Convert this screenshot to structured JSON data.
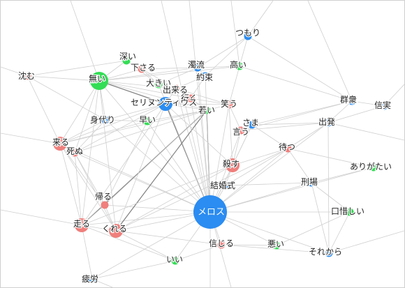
{
  "colors": {
    "pink": "#ef7f7c",
    "blue": "#2b8cf1",
    "green": "#33dd55",
    "edge": "#cfcfcf",
    "edge_strong": "#7f7f7f"
  },
  "nodes": [
    {
      "id": "tsumori",
      "label": "つもり",
      "color": "blue",
      "size": "s"
    },
    {
      "id": "fukai",
      "label": "深い",
      "color": "green",
      "size": "s"
    },
    {
      "id": "sagaru",
      "label": "下さる",
      "color": "pink",
      "size": "s"
    },
    {
      "id": "dakuryu",
      "label": "濁流",
      "color": "blue",
      "size": "s"
    },
    {
      "id": "takai",
      "label": "高い",
      "color": "green",
      "size": "s"
    },
    {
      "id": "shizumu",
      "label": "沈む",
      "color": "pink",
      "size": "s"
    },
    {
      "id": "nai",
      "label": "無い",
      "color": "green",
      "size": "l"
    },
    {
      "id": "ookii",
      "label": "大きい",
      "color": "green",
      "size": "s"
    },
    {
      "id": "yakusoku",
      "label": "約束",
      "color": "blue",
      "size": "s"
    },
    {
      "id": "dekiru",
      "label": "出来る",
      "color": "pink",
      "size": "s"
    },
    {
      "id": "iku",
      "label": "行く",
      "color": "pink",
      "size": "s"
    },
    {
      "id": "warau",
      "label": "笑う",
      "color": "pink",
      "size": "s"
    },
    {
      "id": "gunshu",
      "label": "群衆",
      "color": "blue",
      "size": "s"
    },
    {
      "id": "shinjitsu",
      "label": "信実",
      "color": "blue",
      "size": "s"
    },
    {
      "id": "selinuntius",
      "label": "セリヌンティウス",
      "color": "blue",
      "size": "m"
    },
    {
      "id": "wakai",
      "label": "若い",
      "color": "green",
      "size": "s"
    },
    {
      "id": "migawari",
      "label": "身代り",
      "color": "blue",
      "size": "s"
    },
    {
      "id": "hayai",
      "label": "早い",
      "color": "green",
      "size": "s"
    },
    {
      "id": "sama",
      "label": "さま",
      "color": "blue",
      "size": "s"
    },
    {
      "id": "iu",
      "label": "言う",
      "color": "pink",
      "size": "s"
    },
    {
      "id": "shuppatsu",
      "label": "出発",
      "color": "blue",
      "size": "s"
    },
    {
      "id": "kuru",
      "label": "来る",
      "color": "pink",
      "size": "m"
    },
    {
      "id": "shinu",
      "label": "死ぬ",
      "color": "pink",
      "size": "s"
    },
    {
      "id": "matsu",
      "label": "待つ",
      "color": "pink",
      "size": "s"
    },
    {
      "id": "korosu",
      "label": "殺す",
      "color": "pink",
      "size": "m"
    },
    {
      "id": "arigatai",
      "label": "ありがたい",
      "color": "green",
      "size": "s"
    },
    {
      "id": "keijo",
      "label": "刑場",
      "color": "blue",
      "size": "s"
    },
    {
      "id": "kekkonshiki",
      "label": "結婚式",
      "color": "blue",
      "size": "s"
    },
    {
      "id": "kaeru",
      "label": "帰る",
      "color": "pink",
      "size": "s"
    },
    {
      "id": "hashiru",
      "label": "走る",
      "color": "pink",
      "size": "m"
    },
    {
      "id": "kureru",
      "label": "くれる",
      "color": "pink",
      "size": "m"
    },
    {
      "id": "meros",
      "label": "メロス",
      "color": "blue",
      "size": "xl"
    },
    {
      "id": "kuchioshii",
      "label": "口惜しい",
      "color": "green",
      "size": "s"
    },
    {
      "id": "shinjiru",
      "label": "信じる",
      "color": "pink",
      "size": "s"
    },
    {
      "id": "warui",
      "label": "悪い",
      "color": "green",
      "size": "s"
    },
    {
      "id": "sorekara",
      "label": "それから",
      "color": "blue",
      "size": "s"
    },
    {
      "id": "ii",
      "label": "いい",
      "color": "green",
      "size": "s"
    },
    {
      "id": "hiro",
      "label": "疲労",
      "color": "blue",
      "size": "s"
    }
  ],
  "edges": [
    [
      "meros",
      "selinuntius",
      1
    ],
    [
      "meros",
      "wakai",
      1
    ],
    [
      "meros",
      "kureru",
      0
    ],
    [
      "meros",
      "hashiru",
      0
    ],
    [
      "meros",
      "kaeru",
      0
    ],
    [
      "meros",
      "korosu",
      0
    ],
    [
      "meros",
      "kekkonshiki",
      0
    ],
    [
      "meros",
      "shinjiru",
      0
    ],
    [
      "meros",
      "ii",
      0
    ],
    [
      "meros",
      "warui",
      0
    ],
    [
      "meros",
      "sorekara",
      0
    ],
    [
      "meros",
      "kuchioshii",
      0
    ],
    [
      "meros",
      "matsu",
      0
    ],
    [
      "meros",
      "iu",
      0
    ],
    [
      "meros",
      "sama",
      0
    ],
    [
      "meros",
      "warau",
      0
    ],
    [
      "meros",
      "iku",
      0
    ],
    [
      "meros",
      "dekiru",
      0
    ],
    [
      "meros",
      "nai",
      0
    ],
    [
      "meros",
      "kuru",
      0
    ],
    [
      "meros",
      "shinu",
      0
    ],
    [
      "meros",
      "migawari",
      0
    ],
    [
      "meros",
      "hayai",
      0
    ],
    [
      "meros",
      "keijo",
      0
    ],
    [
      "meros",
      "arigatai",
      0
    ],
    [
      "meros",
      "hiro",
      0
    ],
    [
      "meros",
      "yakusoku",
      0
    ],
    [
      "meros",
      "dakuryu",
      0
    ],
    [
      "meros",
      "shuppatsu",
      0
    ],
    [
      "meros",
      "ookii",
      0
    ],
    [
      "nai",
      "selinuntius",
      1
    ],
    [
      "nai",
      "wakai",
      0
    ],
    [
      "nai",
      "iku",
      0
    ],
    [
      "nai",
      "dekiru",
      0
    ],
    [
      "nai",
      "kuru",
      0
    ],
    [
      "nai",
      "shinu",
      0
    ],
    [
      "nai",
      "hashiru",
      0
    ],
    [
      "nai",
      "kureru",
      0
    ],
    [
      "nai",
      "fukai",
      0
    ],
    [
      "nai",
      "sagaru",
      0
    ],
    [
      "nai",
      "shizumu",
      0
    ],
    [
      "nai",
      "migawari",
      0
    ],
    [
      "nai",
      "takai",
      0
    ],
    [
      "nai",
      "dakuryu",
      0
    ],
    [
      "wakai",
      "kureru",
      1
    ],
    [
      "wakai",
      "hashiru",
      1
    ],
    [
      "wakai",
      "selinuntius",
      0
    ],
    [
      "wakai",
      "iku",
      0
    ],
    [
      "wakai",
      "warau",
      0
    ],
    [
      "wakai",
      "kuru",
      0
    ],
    [
      "wakai",
      "shinu",
      0
    ],
    [
      "wakai",
      "kaeru",
      0
    ],
    [
      "wakai",
      "dekiru",
      0
    ],
    [
      "wakai",
      "hayai",
      0
    ],
    [
      "selinuntius",
      "kuru",
      0
    ],
    [
      "selinuntius",
      "shinu",
      0
    ],
    [
      "selinuntius",
      "iku",
      0
    ],
    [
      "selinuntius",
      "dekiru",
      0
    ],
    [
      "selinuntius",
      "warau",
      0
    ],
    [
      "selinuntius",
      "migawari",
      0
    ],
    [
      "selinuntius",
      "hashiru",
      0
    ],
    [
      "selinuntius",
      "kureru",
      0
    ],
    [
      "selinuntius",
      "korosu",
      0
    ],
    [
      "kuru",
      "shinu",
      0
    ],
    [
      "kuru",
      "hashiru",
      0
    ],
    [
      "kuru",
      "kureru",
      0
    ],
    [
      "kuru",
      "kaeru",
      0
    ],
    [
      "kuru",
      "migawari",
      0
    ],
    [
      "kuru",
      "shizumu",
      0
    ],
    [
      "kuru",
      "hayai",
      0
    ],
    [
      "shinu",
      "hashiru",
      0
    ],
    [
      "shinu",
      "kureru",
      0
    ],
    [
      "shinu",
      "kaeru",
      0
    ],
    [
      "shinu",
      "migawari",
      0
    ],
    [
      "hashiru",
      "kureru",
      0
    ],
    [
      "hashiru",
      "kaeru",
      0
    ],
    [
      "hashiru",
      "hiro",
      0
    ],
    [
      "hashiru",
      "ii",
      0
    ],
    [
      "kureru",
      "kaeru",
      0
    ],
    [
      "kureru",
      "ii",
      0
    ],
    [
      "kureru",
      "shinjiru",
      0
    ],
    [
      "korosu",
      "iu",
      0
    ],
    [
      "korosu",
      "sama",
      0
    ],
    [
      "korosu",
      "matsu",
      0
    ],
    [
      "korosu",
      "kekkonshiki",
      0
    ],
    [
      "korosu",
      "warau",
      0
    ],
    [
      "korosu",
      "kureru",
      0
    ],
    [
      "korosu",
      "hashiru",
      0
    ],
    [
      "iu",
      "sama",
      0
    ],
    [
      "iu",
      "warau",
      0
    ],
    [
      "iu",
      "shuppatsu",
      0
    ],
    [
      "iu",
      "gunshu",
      0
    ],
    [
      "sama",
      "shuppatsu",
      0
    ],
    [
      "sama",
      "gunshu",
      0
    ],
    [
      "sama",
      "matsu",
      0
    ],
    [
      "matsu",
      "keijo",
      0
    ],
    [
      "matsu",
      "shuppatsu",
      0
    ],
    [
      "matsu",
      "kekkonshiki",
      0
    ],
    [
      "matsu",
      "kureru",
      0
    ],
    [
      "shuppatsu",
      "gunshu",
      0
    ],
    [
      "shuppatsu",
      "shinjitsu",
      0
    ],
    [
      "shuppatsu",
      "sorekara",
      0
    ],
    [
      "gunshu",
      "shinjitsu",
      0
    ],
    [
      "gunshu",
      "tsumori",
      0
    ],
    [
      "gunshu",
      "takai",
      0
    ],
    [
      "tsumori",
      "yakusoku",
      0
    ],
    [
      "tsumori",
      "dakuryu",
      0
    ],
    [
      "tsumori",
      "takai",
      0
    ],
    [
      "yakusoku",
      "dakuryu",
      0
    ],
    [
      "yakusoku",
      "dekiru",
      0
    ],
    [
      "yakusoku",
      "iku",
      0
    ],
    [
      "dakuryu",
      "ookii",
      0
    ],
    [
      "dakuryu",
      "takai",
      0
    ],
    [
      "dakuryu",
      "sagaru",
      0
    ],
    [
      "ookii",
      "dekiru",
      0
    ],
    [
      "ookii",
      "sagaru",
      0
    ],
    [
      "ookii",
      "fukai",
      0
    ],
    [
      "fukai",
      "sagaru",
      0
    ],
    [
      "fukai",
      "shizumu",
      0
    ],
    [
      "sagaru",
      "dekiru",
      0
    ],
    [
      "dekiru",
      "iku",
      0
    ],
    [
      "dekiru",
      "warau",
      0
    ],
    [
      "iku",
      "warau",
      0
    ],
    [
      "hayai",
      "migawari",
      0
    ],
    [
      "hayai",
      "kaeru",
      0
    ],
    [
      "sorekara",
      "shinjiru",
      0
    ],
    [
      "sorekara",
      "kuchioshii",
      0
    ],
    [
      "sorekara",
      "keijo",
      0
    ],
    [
      "kuchioshii",
      "warui",
      0
    ],
    [
      "kuchioshii",
      "keijo",
      0
    ],
    [
      "warui",
      "shinjiru",
      0
    ],
    [
      "ii",
      "shinjiru",
      0
    ],
    [
      "ii",
      "hiro",
      0
    ],
    [
      "keijo",
      "kekkonshiki",
      0
    ],
    [
      "arigatai",
      "keijo",
      0
    ],
    [
      "arigatai",
      "matsu",
      0
    ],
    [
      "takai",
      "warau",
      0
    ],
    [
      "shizumu",
      "migawari",
      0
    ]
  ],
  "offscreen_edges": [
    [
      "meros",
      "top-a"
    ],
    [
      "meros",
      "top-b"
    ],
    [
      "meros",
      "bottom-a"
    ],
    [
      "meros",
      "bottom-b"
    ],
    [
      "nai",
      "top-c"
    ],
    [
      "kuru",
      "left-a"
    ],
    [
      "shizumu",
      "left-b"
    ],
    [
      "gunshu",
      "top-d"
    ],
    [
      "sorekara",
      "right-a"
    ],
    [
      "shinjitsu",
      "right-b"
    ],
    [
      "hashiru",
      "left-c"
    ],
    [
      "hiro",
      "bottom-c"
    ],
    [
      "tsumori",
      "top-e"
    ],
    [
      "takai",
      "top-f"
    ],
    [
      "shuppatsu",
      "right-c"
    ]
  ]
}
